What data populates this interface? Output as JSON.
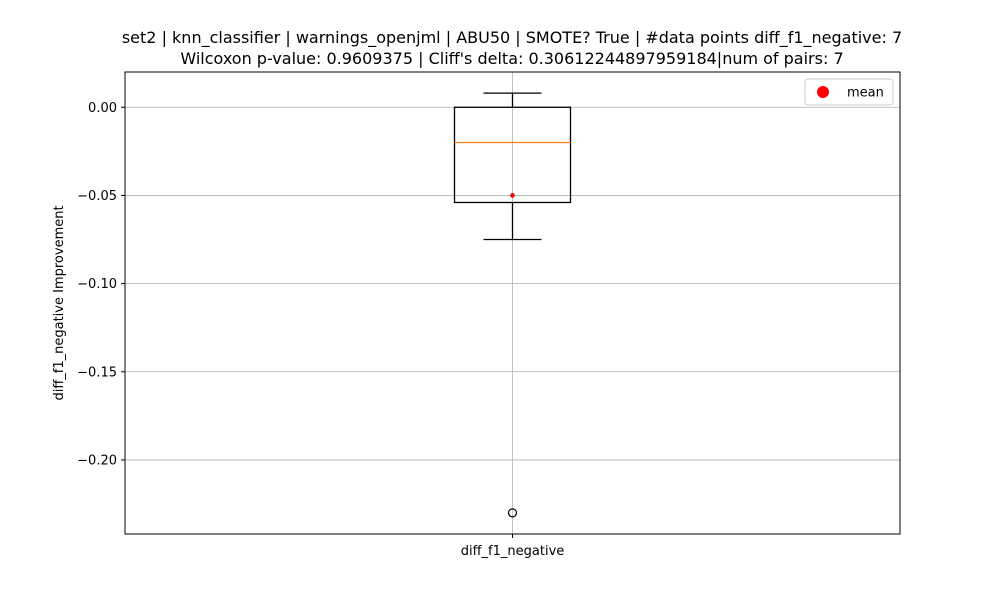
{
  "chart_data": {
    "type": "box",
    "title_line1": "set2 | knn_classifier | warnings_openjml | ABU50 | SMOTE? True | #data points diff_f1_negative: 7",
    "title_line2": "Wilcoxon p-value: 0.9609375 | Cliff's delta: 0.30612244897959184|num of pairs: 7",
    "xlabel": "",
    "ylabel": "diff_f1_negative Improvement",
    "categories": [
      "diff_f1_negative"
    ],
    "ylim": [
      -0.242,
      0.02
    ],
    "yticks": [
      0.0,
      -0.05,
      -0.1,
      -0.15,
      -0.2
    ],
    "ytick_labels": [
      "0.00",
      "−0.05",
      "−0.10",
      "−0.15",
      "−0.20"
    ],
    "grid": true,
    "legend": {
      "position": "upper-right",
      "entries": [
        {
          "label": "mean",
          "color": "#ff0000",
          "marker": "circle"
        }
      ]
    },
    "boxes": [
      {
        "name": "diff_f1_negative",
        "whisker_low": -0.075,
        "q1": -0.054,
        "median": -0.02,
        "q3": 0.0,
        "whisker_high": 0.008,
        "mean": -0.05,
        "outliers": [
          -0.23
        ]
      }
    ],
    "colors": {
      "box": "#000000",
      "median": "#ff7f0e",
      "mean": "#ff0000",
      "grid": "#b0b0b0"
    }
  }
}
